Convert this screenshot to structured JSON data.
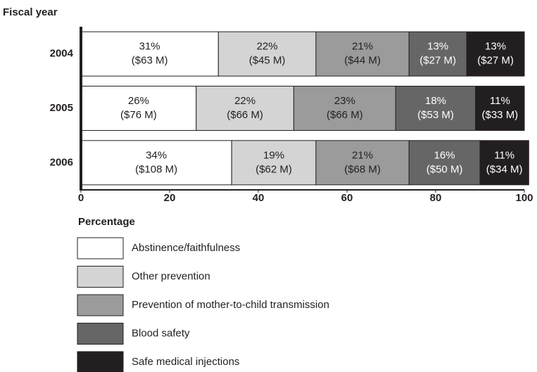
{
  "chart_data": {
    "type": "stacked_bar_horizontal",
    "ylabel": "Fiscal year",
    "xlabel": "Percentage",
    "categories": [
      "2004",
      "2005",
      "2006"
    ],
    "xlim": [
      0,
      100
    ],
    "xticks": [
      0,
      20,
      40,
      60,
      80,
      100
    ],
    "series": [
      {
        "name": "Abstinence/faithfulness",
        "color": "#ffffff",
        "values": [
          31,
          26,
          34
        ],
        "value_labels": [
          "31%",
          "26%",
          "34%"
        ],
        "amount_labels": [
          "($63 M)",
          "($76 M)",
          "($108 M)"
        ]
      },
      {
        "name": "Other prevention",
        "color": "#d4d4d4",
        "values": [
          22,
          22,
          19
        ],
        "value_labels": [
          "22%",
          "22%",
          "19%"
        ],
        "amount_labels": [
          "($45 M)",
          "($66 M)",
          "($62 M)"
        ]
      },
      {
        "name": "Prevention of mother-to-child transmission",
        "color": "#9b9b9b",
        "values": [
          21,
          23,
          21
        ],
        "value_labels": [
          "21%",
          "23%",
          "21%"
        ],
        "amount_labels": [
          "($44 M)",
          "($66 M)",
          "($68 M)"
        ]
      },
      {
        "name": "Blood safety",
        "color": "#666666",
        "values": [
          13,
          18,
          16
        ],
        "value_labels": [
          "13%",
          "18%",
          "16%"
        ],
        "amount_labels": [
          "($27 M)",
          "($53 M)",
          "($50 M)"
        ]
      },
      {
        "name": "Safe medical injections",
        "color": "#231f20",
        "values": [
          13,
          11,
          11
        ],
        "value_labels": [
          "13%",
          "11%",
          "11%"
        ],
        "amount_labels": [
          "($27 M)",
          "($33 M)",
          "($34 M)"
        ]
      }
    ]
  }
}
